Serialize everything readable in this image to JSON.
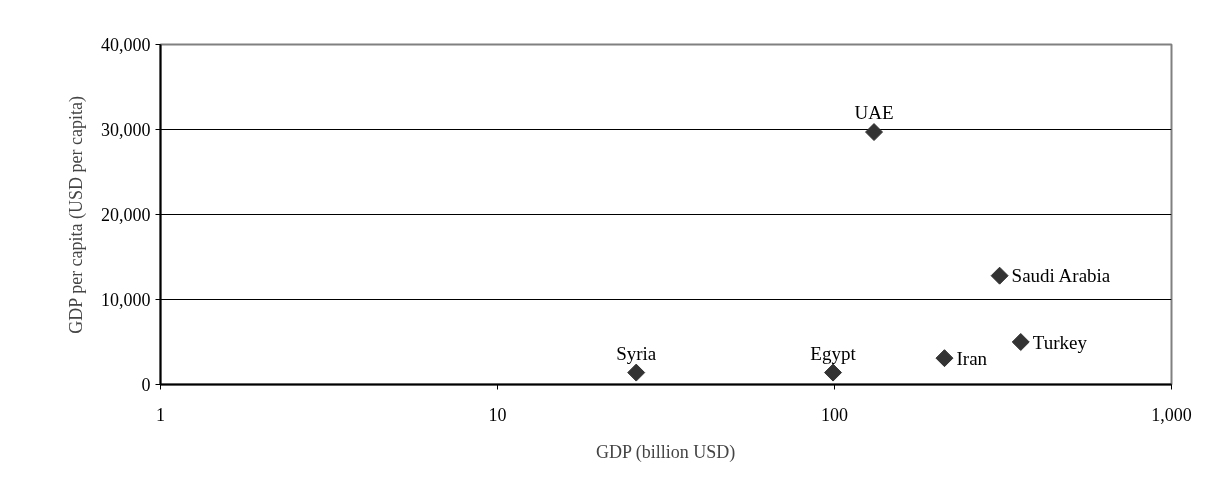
{
  "chart_data": {
    "type": "scatter",
    "xlabel": "GDP (billion USD)",
    "ylabel": "GDP per capita (USD per capita)",
    "x": [
      131,
      309,
      357,
      212,
      99,
      25.8
    ],
    "values": [
      29700,
      12800,
      5000,
      3100,
      1400,
      1400
    ],
    "color": "#333333",
    "marker": "diamond",
    "log": "x",
    "xlim": [
      1,
      1000
    ],
    "xticks": [
      1,
      10,
      100,
      {
        "value": 1000,
        "label": "1,000"
      }
    ],
    "ylim": [
      0,
      40000
    ],
    "yticks": [
      0,
      {
        "value": 10000,
        "label": "10,000"
      },
      {
        "value": 20000,
        "label": "20,000"
      },
      {
        "value": 30000,
        "label": "30,000"
      },
      {
        "value": 40000,
        "label": "40,000"
      }
    ],
    "grid": "y",
    "annotations": [
      {
        "text": "UAE",
        "x": 131,
        "y": 29700
      },
      {
        "text": "Saudi Arabia",
        "x": 309,
        "y": 12800
      },
      {
        "text": "Turkey",
        "x": 357,
        "y": 5000
      },
      {
        "text": "Iran",
        "x": 212,
        "y": 3100
      },
      {
        "text": "Egypt",
        "x": 99,
        "y": 1400
      },
      {
        "text": "Syria",
        "x": 25.8,
        "y": 1400
      }
    ]
  }
}
